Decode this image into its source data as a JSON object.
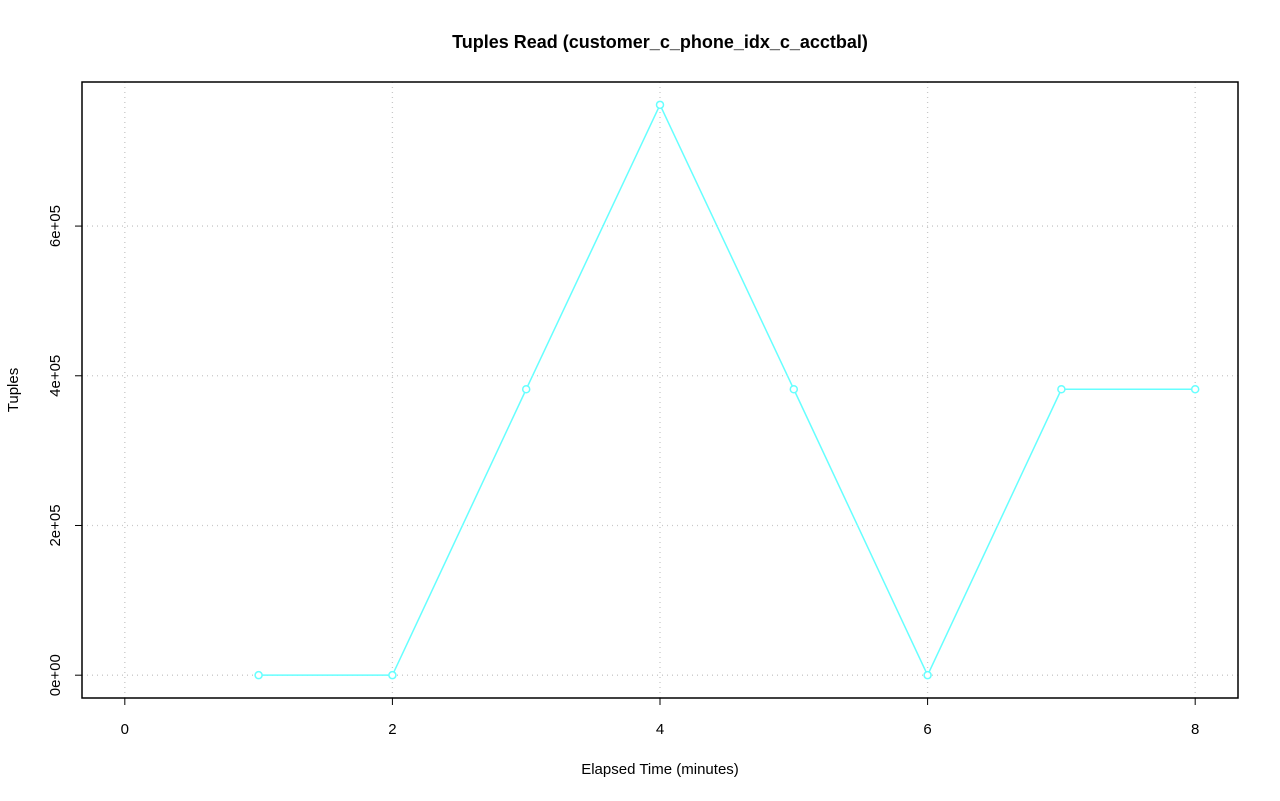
{
  "chart_data": {
    "type": "line",
    "title": "Tuples Read (customer_c_phone_idx_c_acctbal)",
    "x_label": "Elapsed Time (minutes)",
    "y_label": "Tuples",
    "x": [
      1,
      2,
      3,
      4,
      5,
      6,
      7,
      8
    ],
    "values": [
      0,
      0,
      382000,
      762000,
      382000,
      0,
      382000,
      382000
    ],
    "color": "#66ffff",
    "xlim": [
      -0.32,
      8.32
    ],
    "ylim": [
      -30480,
      792480
    ],
    "xticks": [
      0,
      2,
      4,
      6,
      8
    ],
    "yticks": [
      {
        "value": 0,
        "label": "0e+00"
      },
      {
        "value": 200000,
        "label": "2e+05"
      },
      {
        "value": 400000,
        "label": "4e+05"
      },
      {
        "value": 600000,
        "label": "6e+05"
      }
    ],
    "grid": true
  }
}
